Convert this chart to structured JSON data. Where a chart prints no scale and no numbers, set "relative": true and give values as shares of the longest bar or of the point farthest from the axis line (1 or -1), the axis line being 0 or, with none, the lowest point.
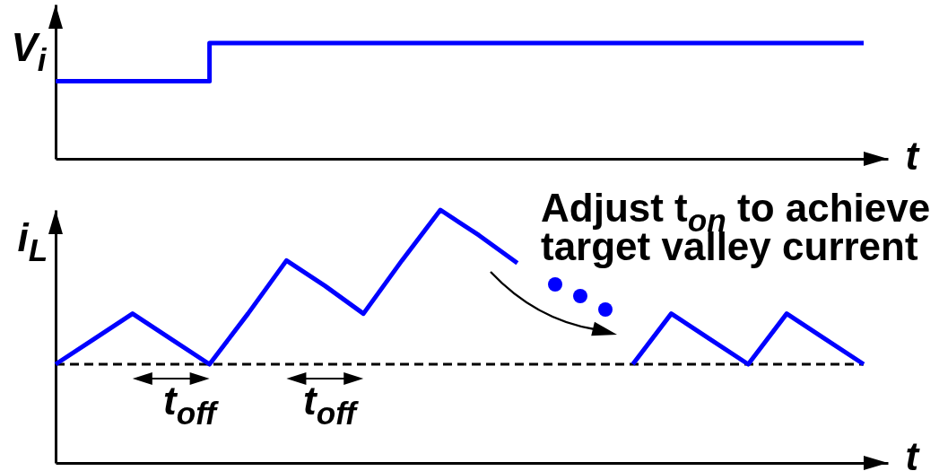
{
  "chart_data": [
    {
      "type": "step",
      "ylabel": "V$_{i}$",
      "xlabel": "t",
      "relative": true,
      "categories": [
        null,
        null,
        null,
        null,
        null,
        null,
        null,
        null,
        null,
        null,
        null,
        null,
        null,
        null,
        null,
        null,
        null,
        null,
        null,
        null,
        null,
        null
      ],
      "series": [
        {
          "color": "#0000ff",
          "values": [
            0.67,
            0.67,
            0.67,
            0.67,
            1,
            1,
            1,
            1,
            1,
            1,
            1,
            1,
            1,
            1,
            1,
            1,
            1,
            1,
            1,
            1,
            1,
            1
          ]
        }
      ]
    },
    {
      "type": "line",
      "ylabel": "i$_{L}$",
      "xlabel": "t",
      "relative": true,
      "categories": [
        null,
        null,
        null,
        null,
        null,
        null,
        null,
        null,
        null,
        null,
        null,
        null,
        null,
        null,
        null,
        null,
        null,
        null,
        null,
        null,
        null,
        null
      ],
      "series": [
        {
          "color": "#0000ff",
          "values": [
            0.39,
            0.49,
            0.59,
            0.49,
            0.39,
            0.59,
            0.8,
            0.7,
            0.59,
            0.8,
            1,
            0.9,
            0.79,
            null,
            null,
            0.39,
            0.59,
            0.49,
            0.39,
            0.59,
            0.49,
            0.39
          ]
        }
      ],
      "ref_lines": [
        {
          "axis": "y",
          "value": 0.39,
          "color": "#000000",
          "line_style": "dashed"
        }
      ],
      "annotations": [
        "t$_{off}$",
        "t$_{off}$",
        "Adjust t$_{on}$ to achieve target valley current"
      ]
    }
  ]
}
